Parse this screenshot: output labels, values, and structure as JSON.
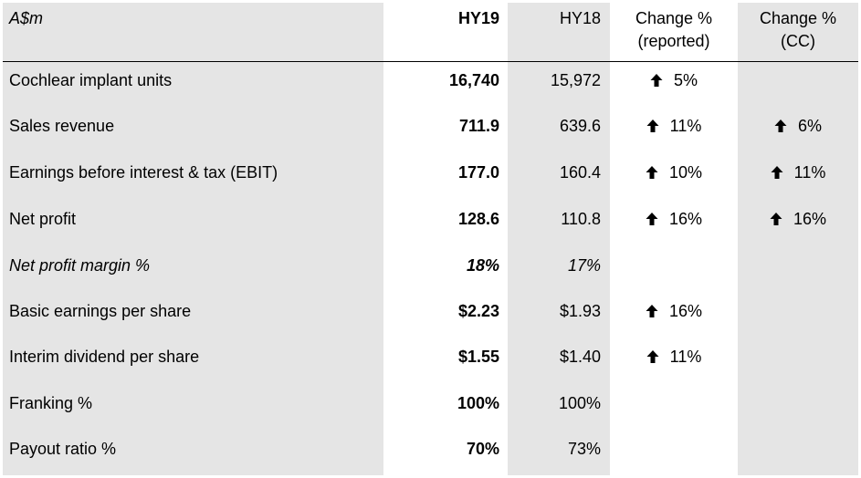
{
  "header": {
    "label": "A$m",
    "hy19": "HY19",
    "hy18": "HY18",
    "change_reported_line1": "Change %",
    "change_reported_line2": "(reported)",
    "change_cc_line1": "Change %",
    "change_cc_line2": "(CC)"
  },
  "icons": {
    "increase": "up-arrow-icon"
  },
  "rows": [
    {
      "label": "Cochlear implant units",
      "hy19": "16,740",
      "hy18": "15,972",
      "change_reported": "5%",
      "change_cc": ""
    },
    {
      "label": "Sales revenue",
      "hy19": "711.9",
      "hy18": "639.6",
      "change_reported": "11%",
      "change_cc": "6%"
    },
    {
      "label": "Earnings before interest & tax (EBIT)",
      "hy19": "177.0",
      "hy18": "160.4",
      "change_reported": "10%",
      "change_cc": "11%"
    },
    {
      "label": "Net profit",
      "hy19": "128.6",
      "hy18": "110.8",
      "change_reported": "16%",
      "change_cc": "16%"
    },
    {
      "label": "Net profit margin %",
      "hy19": "18%",
      "hy18": "17%",
      "change_reported": "",
      "change_cc": ""
    },
    {
      "label": "Basic earnings per share",
      "hy19": "$2.23",
      "hy18": "$1.93",
      "change_reported": "16%",
      "change_cc": ""
    },
    {
      "label": "Interim dividend per share",
      "hy19": "$1.55",
      "hy18": "$1.40",
      "change_reported": "11%",
      "change_cc": ""
    },
    {
      "label": "Franking %",
      "hy19": "100%",
      "hy18": "100%",
      "change_reported": "",
      "change_cc": ""
    },
    {
      "label": "Payout ratio %",
      "hy19": "70%",
      "hy18": "73%",
      "change_reported": "",
      "change_cc": ""
    }
  ]
}
